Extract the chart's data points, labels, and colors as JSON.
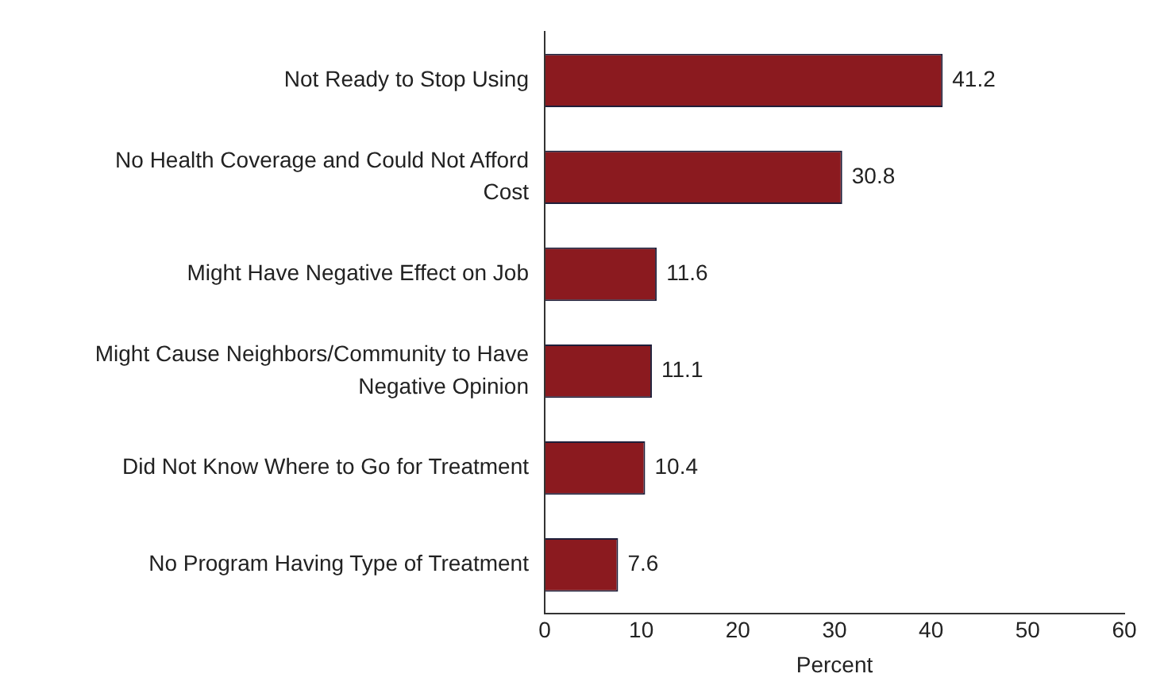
{
  "chart_data": {
    "type": "bar",
    "orientation": "horizontal",
    "xlabel": "Percent",
    "categories": [
      "Not Ready to Stop Using",
      "No Health Coverage and Could Not Afford Cost",
      "Might Have Negative Effect on Job",
      "Might Cause Neighbors/Community to Have Negative Opinion",
      "Did Not Know Where to Go for Treatment",
      "No Program Having Type of Treatment"
    ],
    "values": [
      41.2,
      30.8,
      11.6,
      11.1,
      10.4,
      7.6
    ],
    "color": "#8b1a1f",
    "xlim": [
      0,
      60
    ],
    "xticks": [
      0,
      10,
      20,
      30,
      40,
      50,
      60
    ],
    "data_labels": true,
    "grid": false,
    "legend": false
  }
}
